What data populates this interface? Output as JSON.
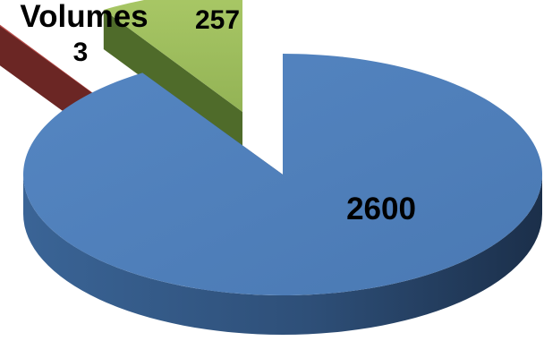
{
  "chart_data": {
    "type": "pie",
    "style": "3d-exploded",
    "title": "Volumes",
    "slices": [
      {
        "label": "2600",
        "value": 2600,
        "color": "#4f81bd"
      },
      {
        "label": "3",
        "value": 3,
        "color": "#c0504d"
      },
      {
        "label": "257",
        "value": 257,
        "color": "#9bbb59"
      }
    ],
    "legend": "none",
    "data_labels": true
  }
}
